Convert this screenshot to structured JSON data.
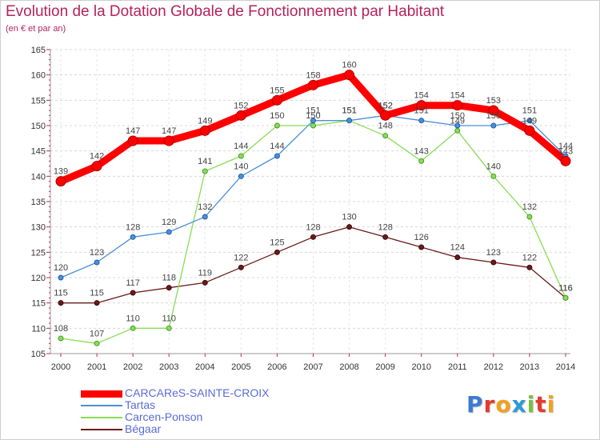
{
  "chart_data": {
    "type": "line",
    "title": "Evolution de la Dotation Globale de Fonctionnement par Habitant",
    "subtitle": "(en € et par an)",
    "xlabel": "",
    "ylabel": "",
    "x": [
      "2000",
      "2001",
      "2002",
      "2003",
      "2004",
      "2005",
      "2006",
      "2007",
      "2008",
      "2009",
      "2010",
      "2011",
      "2012",
      "2013",
      "2014"
    ],
    "ylim": [
      105,
      165
    ],
    "yticks": [
      105,
      110,
      115,
      120,
      125,
      130,
      135,
      140,
      145,
      150,
      155,
      160,
      165
    ],
    "grid": "horizontal",
    "legend_position": "bottom-left",
    "series": [
      {
        "name": "CARCAReS-SAINTE-CROIX",
        "color": "#ff0000",
        "values": [
          139,
          142,
          147,
          147,
          149,
          152,
          155,
          158,
          160,
          152,
          154,
          154,
          153,
          149,
          143
        ]
      },
      {
        "name": "Tartas",
        "color": "#4a90d9",
        "values": [
          120,
          123,
          128,
          129,
          132,
          140,
          144,
          151,
          151,
          152,
          151,
          150,
          150,
          151,
          144
        ]
      },
      {
        "name": "Carcen-Ponson",
        "color": "#88dd55",
        "values": [
          108,
          107,
          110,
          110,
          141,
          144,
          150,
          150,
          151,
          148,
          143,
          149,
          140,
          132,
          116
        ]
      },
      {
        "name": "Bégaar",
        "color": "#6b1a1a",
        "values": [
          115,
          115,
          117,
          118,
          119,
          122,
          125,
          128,
          130,
          128,
          126,
          124,
          123,
          122,
          116
        ]
      }
    ]
  },
  "brand": {
    "letters": [
      "P",
      "r",
      "o",
      "x",
      "i",
      "t",
      "i"
    ],
    "colors": [
      "#3a7bd5",
      "#e23b2e",
      "#f2a11f",
      "#2e9bd6",
      "#7bc043",
      "#e23b2e",
      "#f2a11f"
    ]
  }
}
